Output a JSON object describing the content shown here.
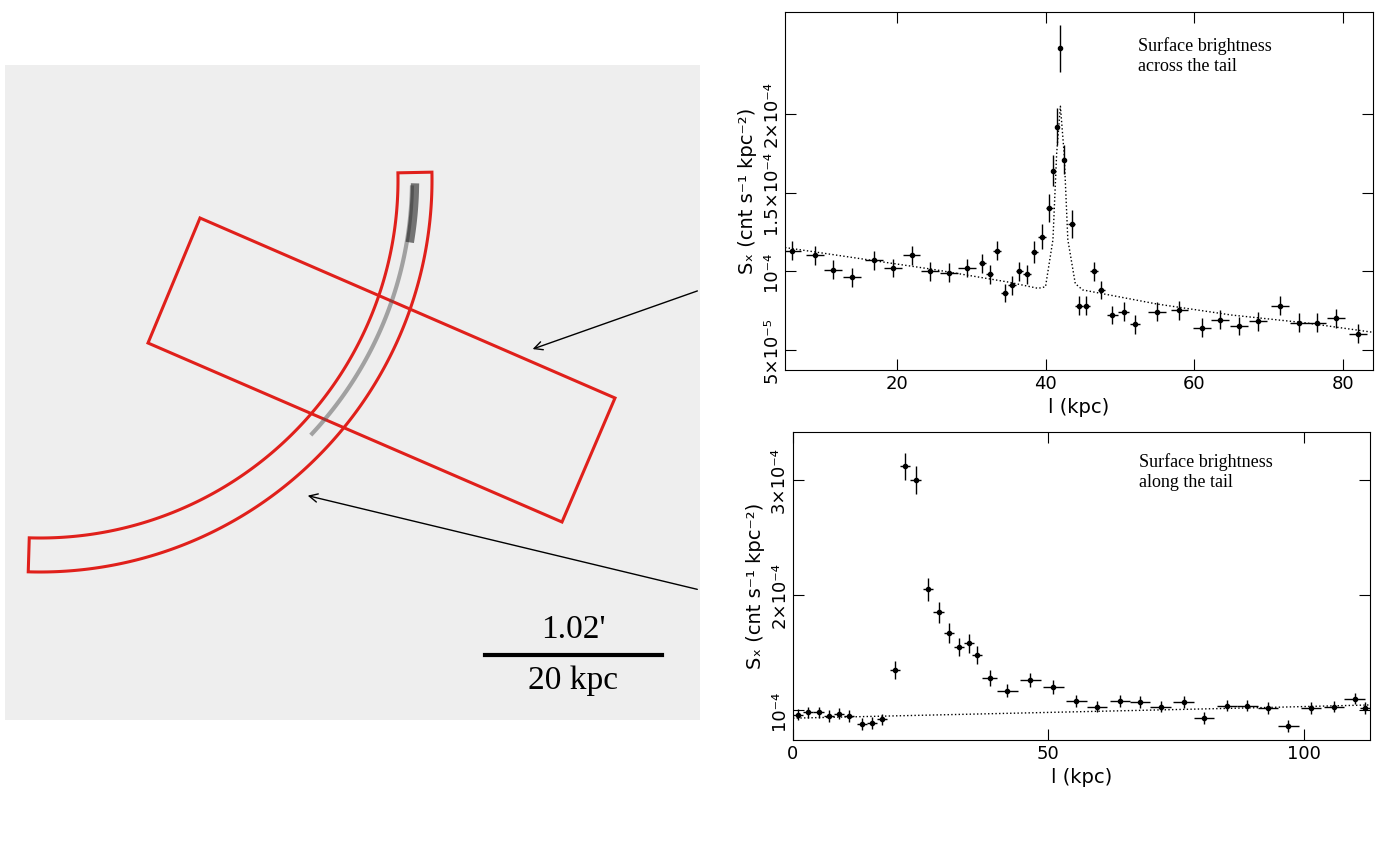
{
  "image": {
    "scale_bar": {
      "angle": "1.02'",
      "length": "20 kpc"
    }
  },
  "chart_data": [
    {
      "type": "scatter",
      "annotation": "Surface brightness\nacross the tail",
      "x_label": "l (kpc)",
      "y_label": "Sₓ (cnt s⁻¹ kpc⁻²)",
      "xlim": [
        5,
        84
      ],
      "ylim": [
        3.7e-05,
        0.000265
      ],
      "xticks": [
        20,
        40,
        60,
        80
      ],
      "yticks": [
        {
          "value": 5e-05,
          "label": "5×10⁻⁵"
        },
        {
          "value": 0.0001,
          "label": "10⁻⁴"
        },
        {
          "value": 0.00015,
          "label": "1.5×10⁻⁴"
        },
        {
          "value": 0.0002,
          "label": "2×10⁻⁴"
        }
      ],
      "series": [
        {
          "type": "errorbar",
          "color": "#000000",
          "marker": "point",
          "x": [
            6,
            9,
            11.5,
            14,
            17,
            19.5,
            22,
            24.5,
            27,
            29.5,
            31.5,
            32.5,
            33.5,
            34.5,
            35.5,
            36.5,
            37.5,
            38.5,
            39.5,
            40.5,
            41,
            41.5,
            42,
            42.5,
            43.5,
            44.5,
            45.5,
            46.5,
            47.5,
            49,
            50.5,
            52,
            55,
            58,
            61,
            63.5,
            66,
            68.5,
            71.5,
            74,
            76.5,
            79,
            82
          ],
          "values": [
            0.000113,
            0.00011,
            0.000101,
            9.6e-05,
            0.000107,
            0.000102,
            0.00011,
            0.0001,
            9.9e-05,
            0.000102,
            0.000105,
            9.8e-05,
            0.000113,
            8.6e-05,
            9.1e-05,
            0.0001,
            9.8e-05,
            0.000112,
            0.000122,
            0.00014,
            0.000164,
            0.000192,
            0.000242,
            0.000171,
            0.00013,
            7.8e-05,
            7.8e-05,
            0.0001,
            8.8e-05,
            7.2e-05,
            7.4e-05,
            6.6e-05,
            7.4e-05,
            7.5e-05,
            6.4e-05,
            6.9e-05,
            6.5e-05,
            6.8e-05,
            7.8e-05,
            6.7e-05,
            6.7e-05,
            7e-05,
            6e-05
          ],
          "errors": [
            6e-06,
            6e-06,
            6e-06,
            6e-06,
            6e-06,
            6e-06,
            6e-06,
            6e-06,
            6e-06,
            6e-06,
            6e-06,
            6e-06,
            6e-06,
            6e-06,
            6e-06,
            6e-06,
            6e-06,
            7e-06,
            8e-06,
            9e-06,
            1e-05,
            1.2e-05,
            1.5e-05,
            9e-06,
            9e-06,
            6e-06,
            6e-06,
            6e-06,
            6e-06,
            6e-06,
            6e-06,
            6e-06,
            6e-06,
            6e-06,
            6e-06,
            6e-06,
            6e-06,
            6e-06,
            6e-06,
            6e-06,
            6e-06,
            6e-06,
            6e-06
          ],
          "x_errors": [
            1.2,
            1.2,
            1.2,
            1.2,
            1.2,
            1.2,
            1.2,
            1.2,
            1.2,
            1.2,
            0.5,
            0.5,
            0.5,
            0.5,
            0.5,
            0.5,
            0.5,
            0.5,
            0.5,
            0.5,
            0.25,
            0.25,
            0.25,
            0.25,
            0.5,
            0.5,
            0.5,
            0.5,
            0.5,
            0.7,
            0.7,
            0.7,
            1.2,
            1.2,
            1.2,
            1.2,
            1.2,
            1.2,
            1.2,
            1.2,
            1.2,
            1.2,
            1.2
          ]
        },
        {
          "type": "line",
          "color": "#000000",
          "line_style": "dotted",
          "x": [
            5,
            15,
            25,
            35,
            39,
            40,
            41,
            41.5,
            42,
            42.5,
            43,
            44,
            45,
            55,
            65,
            75,
            84
          ],
          "values": [
            0.000115,
            0.000108,
            0.000101,
            9.3e-05,
            8.9e-05,
            9e-05,
            0.00012,
            0.000175,
            0.000205,
            0.000175,
            0.00012,
            9.2e-05,
            8.8e-05,
            7.9e-05,
            7.2e-05,
            6.7e-05,
            6.1e-05
          ]
        }
      ]
    },
    {
      "type": "scatter",
      "annotation": "Surface brightness\nalong the tail",
      "x_label": "l (kpc)",
      "y_label": "Sₓ (cnt s⁻¹ kpc⁻²)",
      "xlim": [
        0,
        113
      ],
      "ylim": [
        7.4e-05,
        0.000342
      ],
      "xticks": [
        0,
        50,
        100
      ],
      "yticks": [
        {
          "value": 0.0001,
          "label": "10⁻⁴"
        },
        {
          "value": 0.0002,
          "label": "2×10⁻⁴"
        },
        {
          "value": 0.0003,
          "label": "3×10⁻⁴"
        }
      ],
      "series": [
        {
          "type": "errorbar",
          "color": "#000000",
          "marker": "point",
          "x": [
            1,
            3,
            5,
            7,
            9,
            11,
            13.5,
            15.5,
            17.5,
            20,
            22,
            24,
            26.5,
            28.5,
            30.5,
            32.5,
            34.5,
            36,
            38.5,
            42,
            46.5,
            51,
            55.5,
            59.5,
            64,
            68,
            72,
            76.5,
            80.5,
            85,
            89,
            93,
            97,
            101.5,
            106,
            110,
            112
          ],
          "values": [
            9.6e-05,
            9.8e-05,
            9.8e-05,
            9.5e-05,
            9.7e-05,
            9.5e-05,
            8.8e-05,
            8.9e-05,
            9.2e-05,
            0.000135,
            0.000312,
            0.0003,
            0.000205,
            0.000185,
            0.000167,
            0.000155,
            0.000158,
            0.000148,
            0.000128,
            0.000117,
            0.000126,
            0.00012,
            0.000108,
            0.000103,
            0.000108,
            0.000107,
            0.000103,
            0.000107,
            9.3e-05,
            0.000104,
            0.000104,
            0.000102,
            8.6e-05,
            0.000102,
            0.000103,
            0.00011,
            0.000102
          ],
          "errors": [
            5e-06,
            5e-06,
            5e-06,
            5e-06,
            5e-06,
            5e-06,
            5e-06,
            5e-06,
            5e-06,
            8e-06,
            1.2e-05,
            1.2e-05,
            1e-05,
            9e-06,
            9e-06,
            8e-06,
            8e-06,
            8e-06,
            7e-06,
            6e-06,
            6e-06,
            6e-06,
            5e-06,
            5e-06,
            5e-06,
            5e-06,
            5e-06,
            5e-06,
            5e-06,
            5e-06,
            5e-06,
            5e-06,
            5e-06,
            5e-06,
            5e-06,
            5e-06,
            5e-06
          ],
          "x_errors": [
            1,
            1,
            1,
            1,
            1,
            1,
            1,
            1,
            1,
            1,
            1,
            1,
            1,
            1,
            1,
            1,
            1,
            1,
            1.5,
            2,
            2,
            2,
            2,
            2,
            2,
            2,
            2,
            2,
            2,
            2,
            2,
            2,
            2,
            2,
            2,
            2,
            1
          ]
        },
        {
          "type": "line",
          "color": "#000000",
          "line_style": "dotted",
          "x": [
            0,
            30,
            60,
            90,
            113
          ],
          "values": [
            9.3e-05,
            9.6e-05,
            9.9e-05,
            0.000102,
            0.0001045
          ]
        }
      ]
    }
  ]
}
